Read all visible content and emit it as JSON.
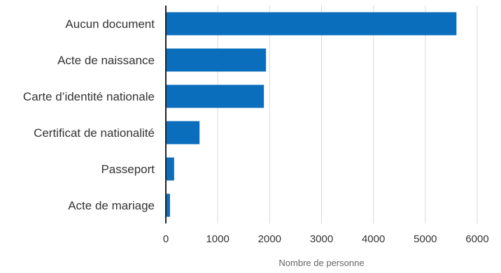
{
  "chart_data": {
    "type": "bar",
    "orientation": "horizontal",
    "categories": [
      "Aucun document",
      "Acte de naissance",
      "Carte d’identité nationale",
      "Certificat de nationalité",
      "Passeport",
      "Acte de mariage"
    ],
    "values": [
      5600,
      1930,
      1890,
      650,
      160,
      80
    ],
    "xlabel": "Nombre de personne",
    "ylabel": "",
    "xlim": [
      0,
      6000
    ],
    "xticks": [
      "0",
      "1000",
      "2000",
      "3000",
      "4000",
      "5000",
      "6000"
    ],
    "grid": "vertical",
    "legend": "none",
    "colors": {
      "bar": "#0a6ebd",
      "grid": "#d9d9d9",
      "axis": "#222222",
      "text": "#333333",
      "axis_title": "#666666"
    }
  }
}
